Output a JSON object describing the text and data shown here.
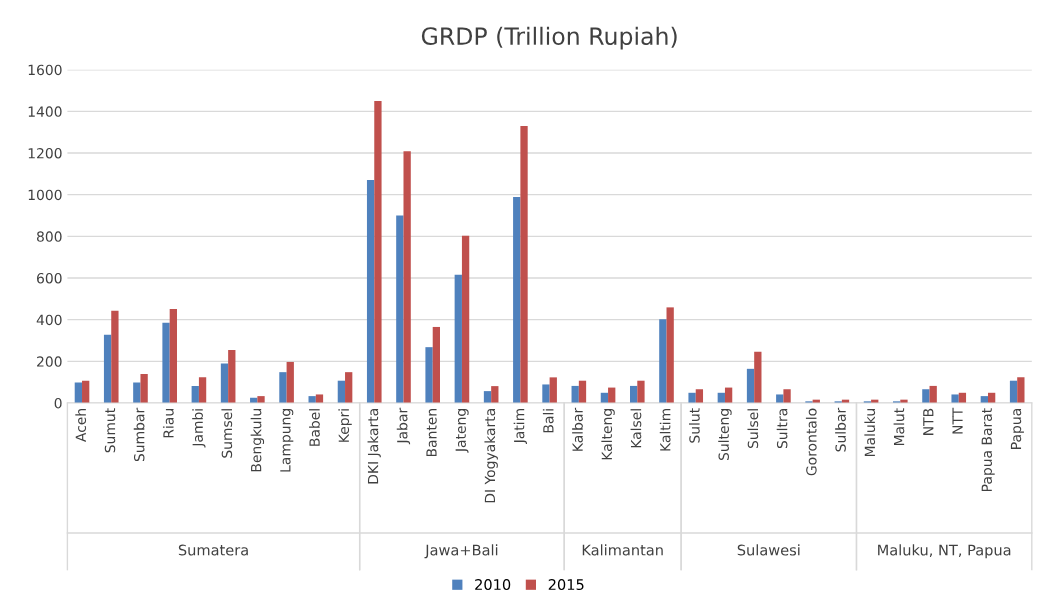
{
  "chart_data": {
    "type": "bar",
    "title": "GRDP (Trillion Rupiah)",
    "categories": [
      "Aceh",
      "Sumut",
      "Sumbar",
      "Riau",
      "Jambi",
      "Sumsel",
      "Bengkulu",
      "Lampung",
      "Babel",
      "Kepri",
      "DKI Jakarta",
      "Jabar",
      "Banten",
      "Jateng",
      "DI Yogyakarta",
      "Jatim",
      "Bali",
      "Kalbar",
      "Kalteng",
      "Kalsel",
      "Kaltim",
      "Sulut",
      "Sulteng",
      "Sulsel",
      "Sultra",
      "Gorontalo",
      "Sulbar",
      "Maluku",
      "Malut",
      "NTB",
      "NTT",
      "Papua Barat",
      "Papua"
    ],
    "series": [
      {
        "name": "2010",
        "color": "#4f81bd",
        "values": [
          98,
          328,
          98,
          385,
          82,
          189,
          25,
          148,
          33,
          107,
          1070,
          900,
          268,
          616,
          57,
          989,
          89,
          82,
          49,
          82,
          402,
          49,
          49,
          164,
          41,
          8,
          8,
          8,
          8,
          66,
          41,
          33,
          107
        ]
      },
      {
        "name": "2015",
        "color": "#c0504d",
        "values": [
          107,
          443,
          139,
          451,
          123,
          254,
          33,
          197,
          41,
          148,
          1450,
          1208,
          365,
          803,
          81,
          1330,
          123,
          107,
          74,
          107,
          459,
          66,
          74,
          246,
          66,
          16,
          16,
          16,
          16,
          82,
          49,
          49,
          123
        ]
      }
    ],
    "annotations": [
      "Sumatera",
      "Jawa+Bali",
      "Kalimantan",
      "Sulawesi",
      "Maluku, NT, Papua"
    ],
    "ylim": [
      0,
      1600
    ],
    "yticks": [
      0,
      200,
      400,
      600,
      800,
      1000,
      1200,
      1400,
      1600
    ],
    "grid": "y",
    "legend": "bottom"
  }
}
